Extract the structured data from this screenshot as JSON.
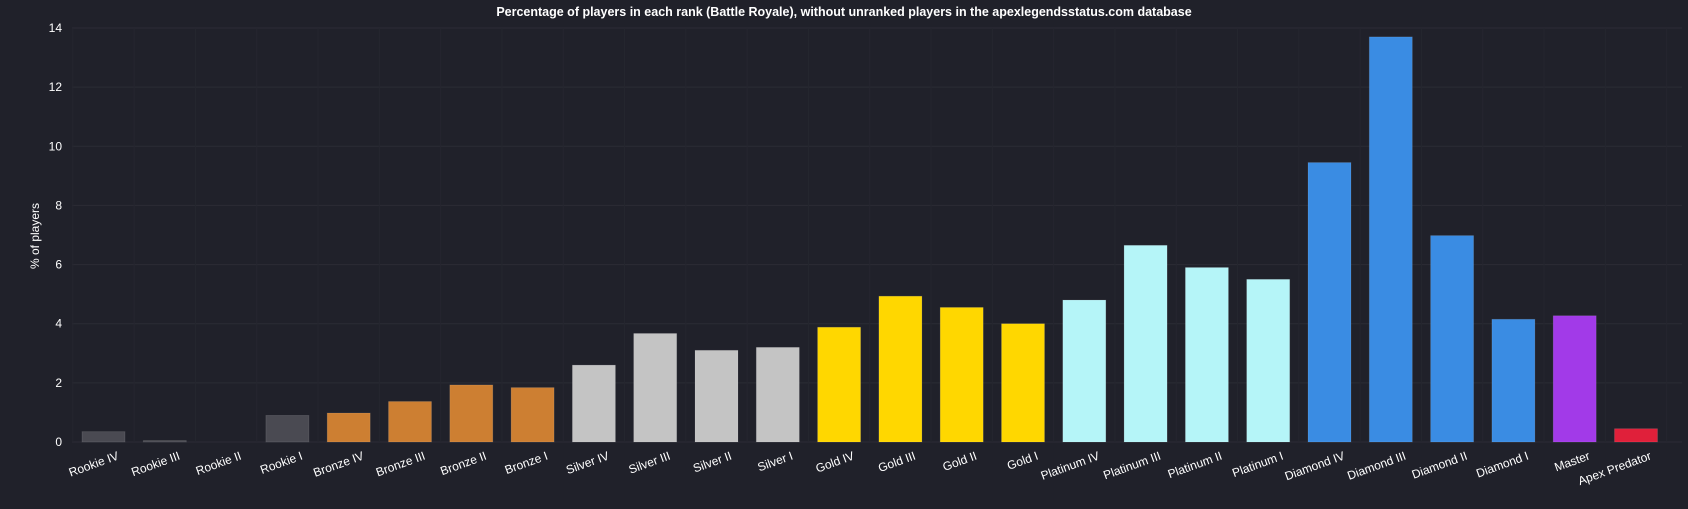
{
  "chart_data": {
    "type": "bar",
    "title": "Percentage of players in each rank (Battle Royale), without unranked players in the apexlegendsstatus.com database",
    "xlabel": "",
    "ylabel": "% of players",
    "ylim": [
      0,
      14
    ],
    "yticks": [
      0,
      2,
      4,
      6,
      8,
      10,
      12,
      14
    ],
    "grid": true,
    "categories": [
      "Rookie IV",
      "Rookie III",
      "Rookie II",
      "Rookie I",
      "Bronze IV",
      "Bronze III",
      "Bronze II",
      "Bronze I",
      "Silver IV",
      "Silver III",
      "Silver II",
      "Silver I",
      "Gold IV",
      "Gold III",
      "Gold II",
      "Gold I",
      "Platinum IV",
      "Platinum III",
      "Platinum II",
      "Platinum I",
      "Diamond IV",
      "Diamond III",
      "Diamond II",
      "Diamond I",
      "Master",
      "Apex Predator"
    ],
    "values": [
      0.35,
      0.05,
      0.0,
      0.9,
      0.98,
      1.37,
      1.93,
      1.84,
      2.6,
      3.67,
      3.1,
      3.2,
      3.88,
      4.93,
      4.55,
      4.0,
      4.8,
      6.65,
      5.9,
      5.5,
      9.45,
      13.7,
      6.98,
      4.15,
      4.27,
      0.45
    ],
    "colors": [
      "#4a4a52",
      "#4a4a52",
      "#4a4a52",
      "#4a4a52",
      "#cd7f32",
      "#cd7f32",
      "#cd7f32",
      "#cd7f32",
      "#c4c4c4",
      "#c4c4c4",
      "#c4c4c4",
      "#c4c4c4",
      "#ffd700",
      "#ffd700",
      "#ffd700",
      "#ffd700",
      "#b5f5f8",
      "#b5f5f8",
      "#b5f5f8",
      "#b5f5f8",
      "#3a8ce3",
      "#3a8ce3",
      "#3a8ce3",
      "#3a8ce3",
      "#a23ae8",
      "#e0203a"
    ]
  }
}
